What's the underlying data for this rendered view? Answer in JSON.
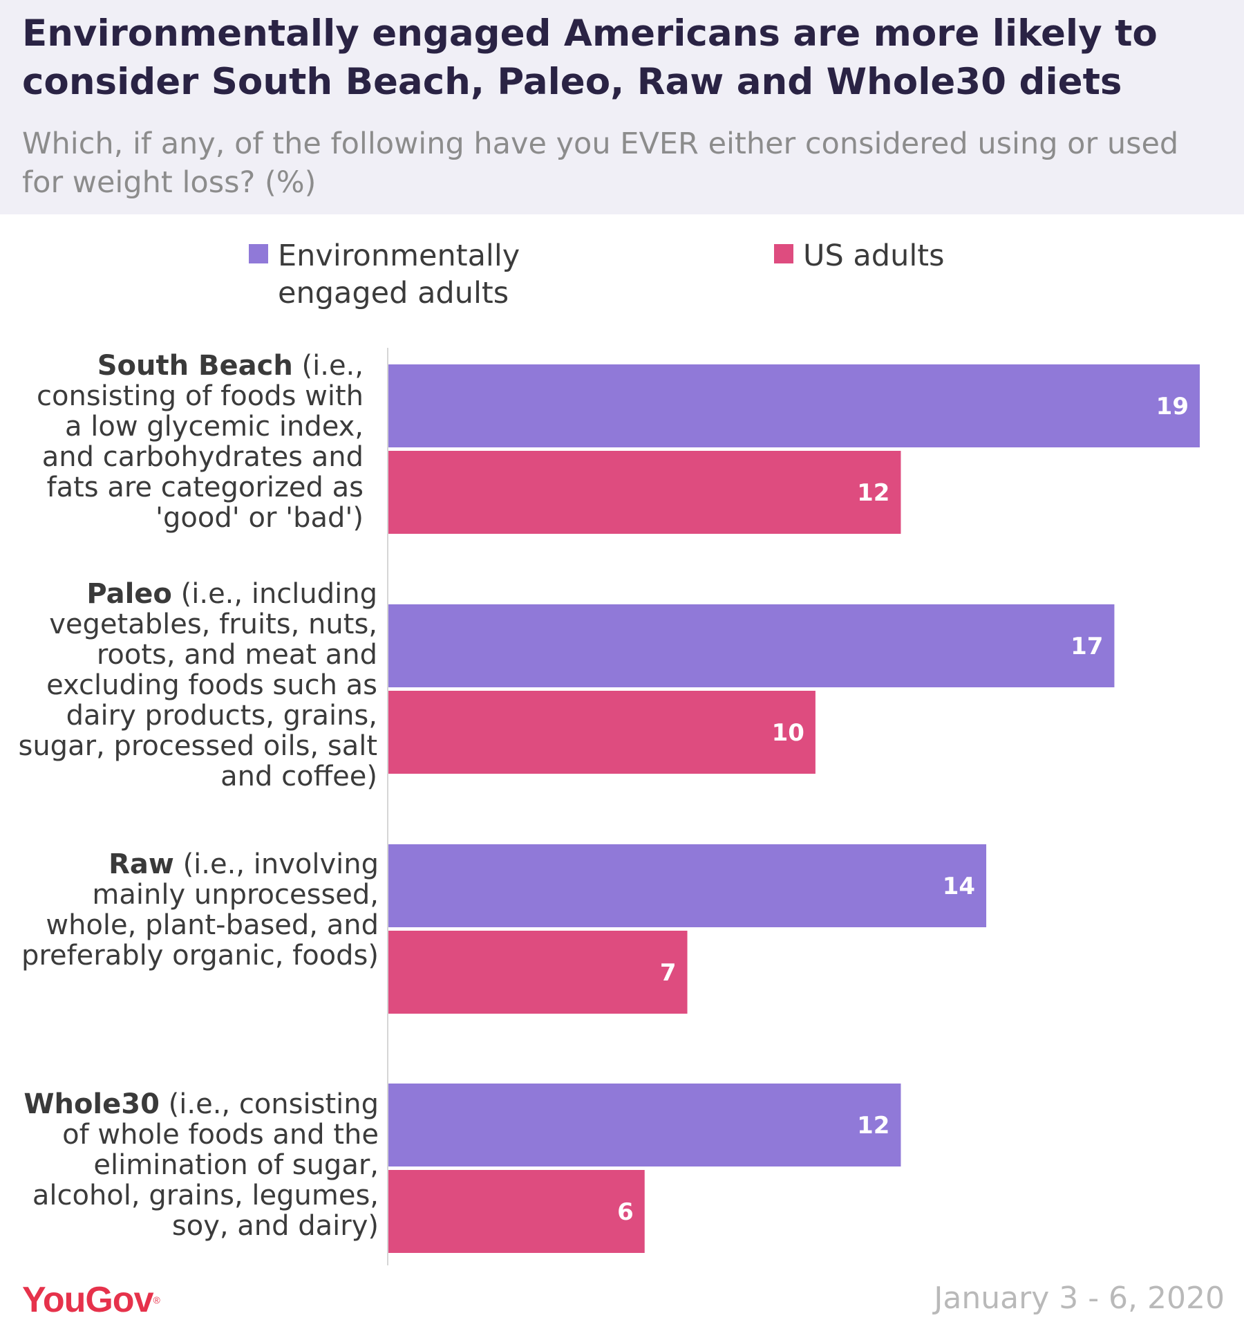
{
  "header": {
    "title": "Environmentally engaged Americans are more likely to consider South Beach, Paleo, Raw and Whole30 diets",
    "subtitle": "Which, if any, of the following have you EVER either considered using or used for weight loss? (%)"
  },
  "legend": [
    {
      "label": "Environmentally engaged adults",
      "color": "#9079d8"
    },
    {
      "label": "US adults",
      "color": "#de4c7f"
    }
  ],
  "categories": [
    {
      "name": "South Beach",
      "description": "(i.e., consisting of foods with a low glycemic index, and carbohydrates and fats are categorized as 'good' or 'bad')"
    },
    {
      "name": "Paleo",
      "description": "(i.e., including vegetables, fruits, nuts, roots, and meat and excluding foods such as dairy products, grains, sugar, processed oils, salt and coffee)"
    },
    {
      "name": "Raw",
      "description": "(i.e., involving mainly unprocessed, whole, plant-based, and preferably organic, foods)"
    },
    {
      "name": "Whole30",
      "description": "(i.e., consisting of whole foods and the elimination of sugar, alcohol, grains, legumes, soy, and dairy)"
    }
  ],
  "chart_data": {
    "type": "bar",
    "orientation": "horizontal",
    "title": "Environmentally engaged Americans are more likely to consider South Beach, Paleo, Raw and Whole30 diets",
    "subtitle": "Which, if any, of the following have you EVER either considered using or used for weight loss? (%)",
    "categories": [
      "South Beach",
      "Paleo",
      "Raw",
      "Whole30"
    ],
    "series": [
      {
        "name": "Environmentally engaged adults",
        "values": [
          19,
          17,
          14,
          12
        ],
        "color": "#9079d8"
      },
      {
        "name": "US adults",
        "values": [
          12,
          10,
          7,
          6
        ],
        "color": "#de4c7f"
      }
    ],
    "xlabel": "",
    "ylabel": "",
    "xlim": [
      0,
      19
    ],
    "grid": false,
    "legend_position": "top"
  },
  "footer": {
    "logo": "YouGov",
    "logo_mark": "®",
    "date": "January 3 - 6, 2020"
  }
}
